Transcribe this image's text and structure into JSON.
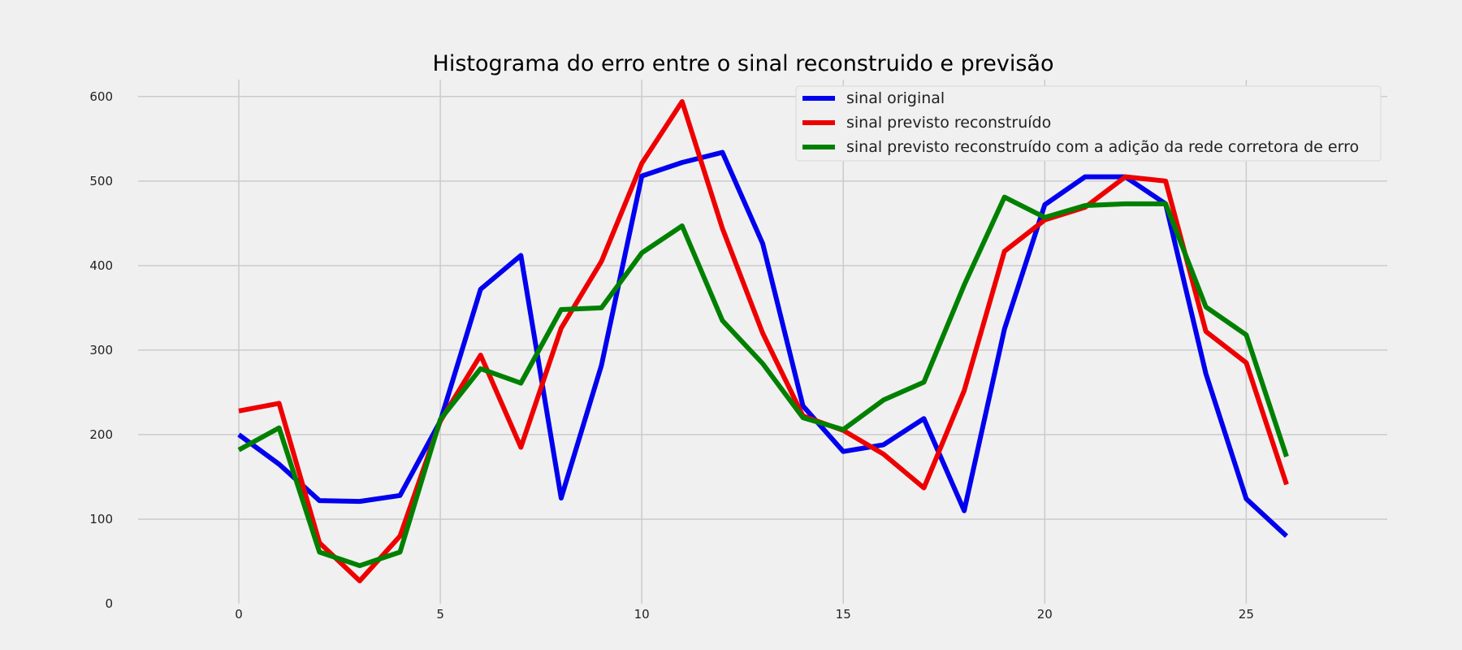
{
  "chart_data": {
    "type": "line",
    "title": "Histograma do erro entre o sinal reconstruido e previsão",
    "xlabel": "",
    "ylabel": "",
    "xlim": [
      -2.5,
      28.5
    ],
    "ylim": [
      0,
      620
    ],
    "xticks": [
      0,
      5,
      10,
      15,
      20,
      25
    ],
    "yticks": [
      0,
      100,
      200,
      300,
      400,
      500,
      600
    ],
    "grid": true,
    "legend_position": "upper-right",
    "x": [
      0,
      1,
      2,
      3,
      4,
      5,
      6,
      7,
      8,
      9,
      10,
      11,
      12,
      13,
      14,
      15,
      16,
      17,
      18,
      19,
      20,
      21,
      22,
      23,
      24,
      25,
      26
    ],
    "series": [
      {
        "name": "sinal original",
        "color": "#0000ee",
        "values": [
          200,
          165,
          122,
          121,
          128,
          216,
          372,
          412,
          125,
          282,
          506,
          522,
          534,
          426,
          234,
          180,
          188,
          219,
          110,
          325,
          472,
          505,
          505,
          473,
          272,
          124,
          80
        ]
      },
      {
        "name": "sinal previsto reconstruído",
        "color": "#ee0000",
        "values": [
          228,
          237,
          72,
          27,
          80,
          216,
          294,
          185,
          326,
          405,
          521,
          594,
          444,
          320,
          222,
          205,
          177,
          137,
          252,
          417,
          454,
          469,
          505,
          500,
          322,
          285,
          141
        ]
      },
      {
        "name": "sinal previsto reconstruído com a adição da rede corretora de erro",
        "color": "#008000",
        "values": [
          182,
          208,
          61,
          45,
          61,
          218,
          278,
          261,
          348,
          350,
          415,
          447,
          335,
          284,
          220,
          206,
          241,
          262,
          377,
          481,
          457,
          471,
          473,
          473,
          351,
          318,
          174
        ]
      }
    ]
  }
}
